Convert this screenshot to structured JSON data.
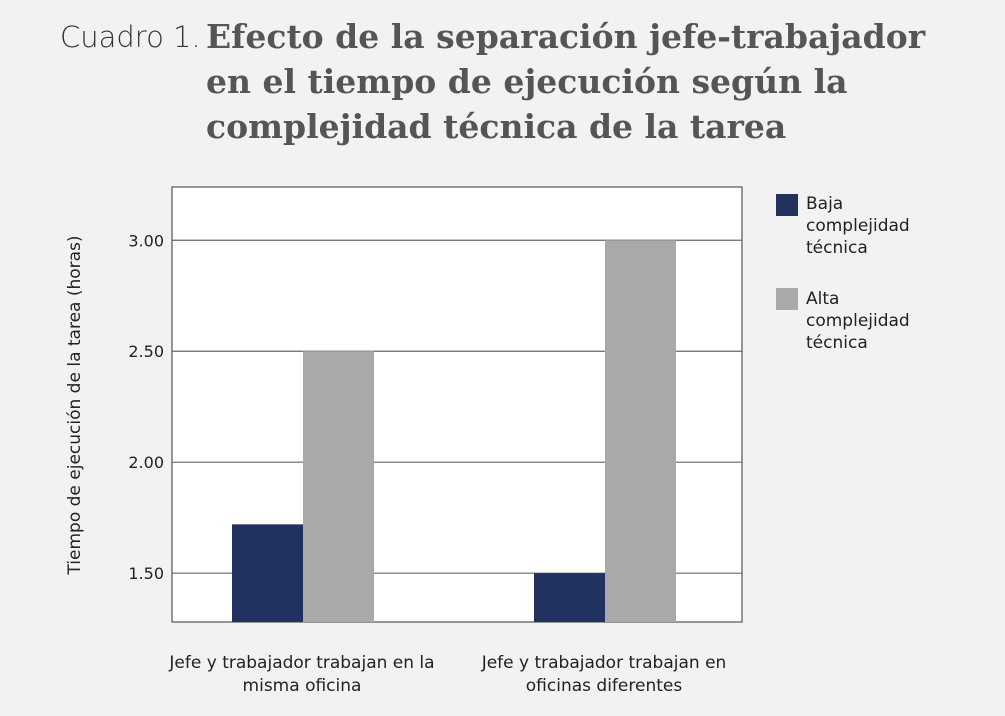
{
  "header": {
    "prefix": "Cuadro 1.",
    "title": "Efecto de la separación jefe-trabajador en el tiempo de ejecución según la complejidad técnica de la tarea"
  },
  "chart_data": {
    "type": "bar",
    "categories": [
      "Jefe y trabajador trabajan en la misma oficina",
      "Jefe y trabajador trabajan en oficinas diferentes"
    ],
    "series": [
      {
        "name": "Baja complejidad técnica",
        "color": "#22325f",
        "values": [
          1.72,
          1.5
        ]
      },
      {
        "name": "Alta complejidad técnica",
        "color": "#a9a9a9",
        "values": [
          2.5,
          3.0
        ]
      }
    ],
    "ylabel": "Tiempo de ejecución de la tarea (horas)",
    "xlabel": "",
    "ylim": [
      1.28,
      3.24
    ],
    "yticks": [
      "1.50",
      "2.00",
      "2.50",
      "3.00"
    ],
    "grid": true,
    "legend": "right"
  }
}
